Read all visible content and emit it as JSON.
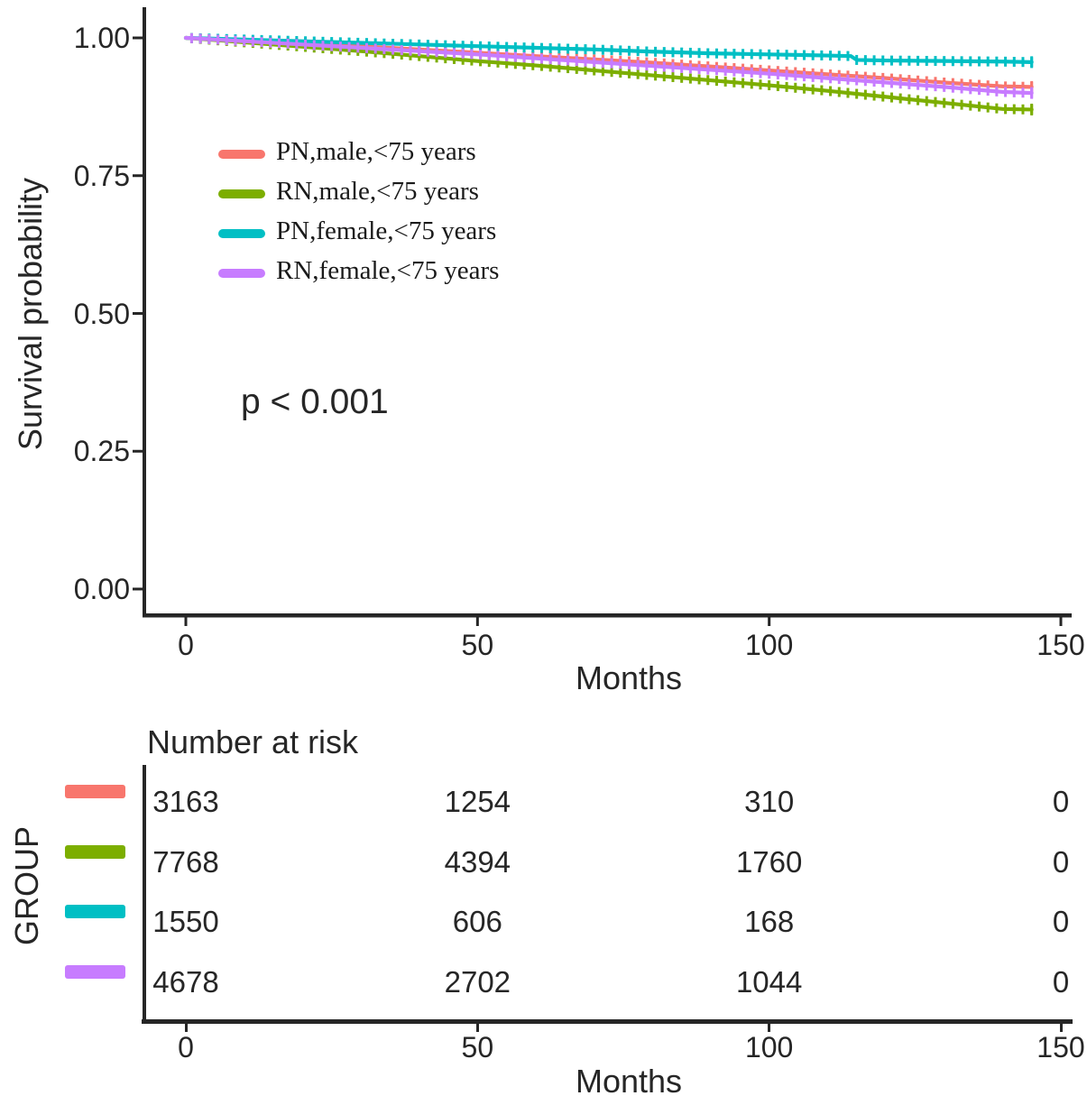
{
  "main_plot": {
    "y_axis_label": "Survival probability",
    "x_axis_label": "Months",
    "p_value_annotation": "p < 0.001"
  },
  "risk_table": {
    "title": "Number at risk",
    "y_axis_label": "GROUP",
    "x_axis_label": "Months",
    "x_ticks": [
      0,
      50,
      100,
      150
    ],
    "rows": [
      {
        "group": "PN,male,<75 years",
        "color": "#F8766D",
        "counts": [
          3163,
          1254,
          310,
          0
        ]
      },
      {
        "group": "RN,male,<75 years",
        "color": "#7CAE00",
        "counts": [
          7768,
          4394,
          1760,
          0
        ]
      },
      {
        "group": "PN,female,<75 years",
        "color": "#00BFC4",
        "counts": [
          1550,
          606,
          168,
          0
        ]
      },
      {
        "group": "RN,female,<75 years",
        "color": "#C77CFF",
        "counts": [
          4678,
          2702,
          1044,
          0
        ]
      }
    ]
  },
  "chart_data": {
    "type": "line",
    "subtype": "kaplan-meier-survival",
    "title": "",
    "xlabel": "Months",
    "ylabel": "Survival probability",
    "xlim": [
      0,
      150
    ],
    "ylim": [
      0,
      1
    ],
    "x_ticks": [
      0,
      50,
      100,
      150
    ],
    "y_ticks": [
      1.0,
      0.75,
      0.5,
      0.25,
      0.0
    ],
    "y_tick_labels": [
      "1.00",
      "0.75",
      "0.50",
      "0.25",
      "0.00"
    ],
    "grid": false,
    "annotation": "p < 0.001",
    "legend_position": "inside-upper-left",
    "censor_tick_interval_months": 1.5,
    "series": [
      {
        "name": "PN,male,<75 years",
        "color": "#F8766D",
        "x": [
          0,
          10,
          20,
          30,
          40,
          50,
          60,
          70,
          80,
          90,
          100,
          110,
          120,
          130,
          140,
          145
        ],
        "y": [
          1.0,
          0.995,
          0.99,
          0.985,
          0.979,
          0.973,
          0.967,
          0.961,
          0.955,
          0.948,
          0.941,
          0.934,
          0.927,
          0.919,
          0.912,
          0.911
        ]
      },
      {
        "name": "RN,male,<75 years",
        "color": "#7CAE00",
        "x": [
          0,
          10,
          20,
          30,
          40,
          50,
          60,
          70,
          80,
          90,
          100,
          110,
          120,
          130,
          140,
          145
        ],
        "y": [
          1.0,
          0.992,
          0.984,
          0.976,
          0.967,
          0.958,
          0.95,
          0.941,
          0.932,
          0.923,
          0.914,
          0.904,
          0.893,
          0.882,
          0.871,
          0.87
        ]
      },
      {
        "name": "PN,female,<75 years",
        "color": "#00BFC4",
        "x": [
          0,
          10,
          20,
          30,
          40,
          50,
          60,
          70,
          80,
          90,
          100,
          110,
          114,
          115,
          120,
          130,
          140,
          145
        ],
        "y": [
          1.0,
          0.997,
          0.994,
          0.991,
          0.988,
          0.985,
          0.982,
          0.979,
          0.975,
          0.972,
          0.97,
          0.968,
          0.967,
          0.96,
          0.959,
          0.958,
          0.957,
          0.956
        ]
      },
      {
        "name": "RN,female,<75 years",
        "color": "#C77CFF",
        "x": [
          0,
          10,
          20,
          30,
          40,
          50,
          60,
          70,
          80,
          90,
          100,
          110,
          120,
          130,
          140,
          145
        ],
        "y": [
          1.0,
          0.994,
          0.988,
          0.982,
          0.976,
          0.97,
          0.963,
          0.956,
          0.949,
          0.942,
          0.935,
          0.927,
          0.919,
          0.911,
          0.902,
          0.9
        ]
      }
    ]
  }
}
